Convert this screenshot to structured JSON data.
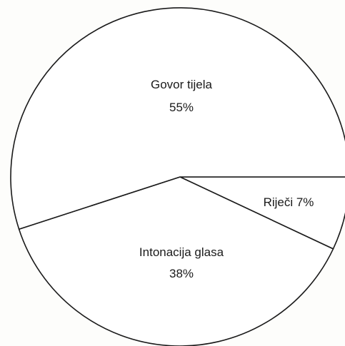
{
  "chart_data": {
    "type": "pie",
    "title": "",
    "slices": [
      {
        "label": "Govor tijela",
        "value": 55,
        "value_text": "55%"
      },
      {
        "label": "Intonacija glasa",
        "value": 38,
        "value_text": "38%"
      },
      {
        "label": "Riječi",
        "value": 7,
        "value_text": "7%"
      }
    ],
    "label_texts": {
      "govor_name": "Govor tijela",
      "govor_pct": "55%",
      "intonacija_name": "Intonacija glasa",
      "intonacija_pct": "38%",
      "rijeci_combined": "Riječi 7%"
    },
    "colors": {
      "fill": "#ffffff",
      "stroke": "#1a1a1a",
      "text": "#1a1a1a"
    }
  }
}
